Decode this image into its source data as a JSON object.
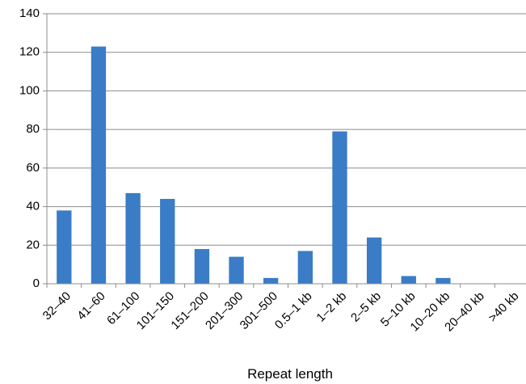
{
  "chart_data": {
    "type": "bar",
    "categories": [
      "32–40",
      "41–60",
      "61–100",
      "101–150",
      "151–200",
      "201–300",
      "301–500",
      "0.5–1 kb",
      "1–2 kb",
      "2–5 kb",
      "5–10 kb",
      "10–20 kb",
      "20–40 kb",
      ">40 kb"
    ],
    "values": [
      38,
      123,
      47,
      44,
      18,
      14,
      3,
      17,
      79,
      24,
      4,
      3,
      0,
      0
    ],
    "xlabel": "Repeat length",
    "ylabel": "",
    "ylim": [
      0,
      140
    ],
    "yticks": [
      0,
      20,
      40,
      60,
      80,
      100,
      120,
      140
    ],
    "grid": true,
    "colors": {
      "bar": "#3a7cc6",
      "grid": "#8c8c8c"
    }
  }
}
